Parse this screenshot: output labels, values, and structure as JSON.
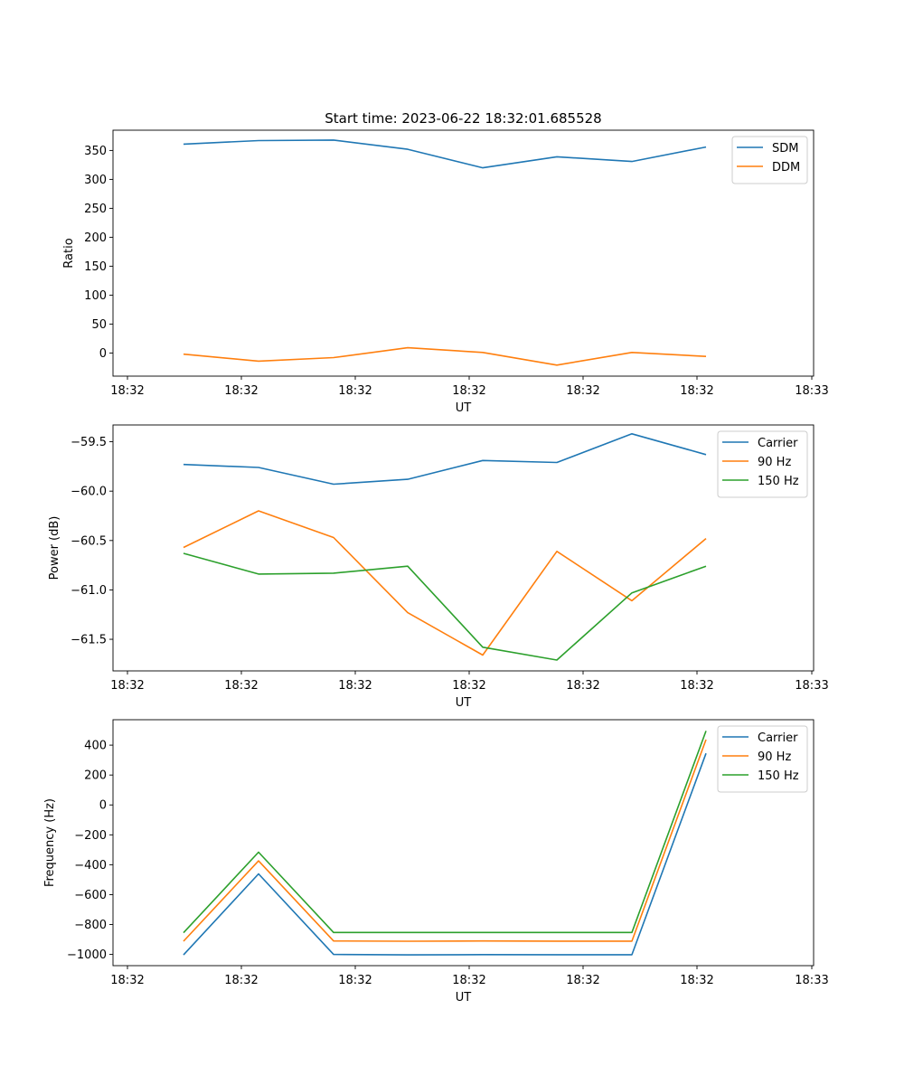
{
  "title": "Start time: 2023-06-22 18:32:01.685528",
  "colors": {
    "blue": "#1f77b4",
    "orange": "#ff7f0e",
    "green": "#2ca02c"
  },
  "chart_data": [
    {
      "type": "line",
      "xlabel": "UT",
      "ylabel": "Ratio",
      "x_tick_labels": [
        "18:32",
        "18:32",
        "18:32",
        "18:32",
        "18:32",
        "18:32",
        "18:33"
      ],
      "y_ticks": [
        0,
        50,
        100,
        150,
        200,
        250,
        300,
        350
      ],
      "ylim": [
        -40,
        385
      ],
      "legend": "top-right",
      "series": [
        {
          "name": "SDM",
          "color": "#1f77b4",
          "values": [
            361,
            367,
            368,
            352,
            320,
            339,
            331,
            356
          ]
        },
        {
          "name": "DDM",
          "color": "#ff7f0e",
          "values": [
            -2,
            -14,
            -8,
            9,
            1,
            -21,
            1,
            -6
          ]
        }
      ]
    },
    {
      "type": "line",
      "xlabel": "UT",
      "ylabel": "Power (dB)",
      "x_tick_labels": [
        "18:32",
        "18:32",
        "18:32",
        "18:32",
        "18:32",
        "18:32",
        "18:33"
      ],
      "y_ticks": [
        -61.5,
        -61.0,
        -60.5,
        -60.0,
        -59.5
      ],
      "y_tick_labels": [
        "−61.5",
        "−61.0",
        "−60.5",
        "−60.0",
        "−59.5"
      ],
      "ylim": [
        -61.82,
        -59.33
      ],
      "legend": "top-right",
      "series": [
        {
          "name": "Carrier",
          "color": "#1f77b4",
          "values": [
            -59.73,
            -59.76,
            -59.93,
            -59.88,
            -59.69,
            -59.71,
            -59.42,
            -59.63
          ]
        },
        {
          "name": "90 Hz",
          "color": "#ff7f0e",
          "values": [
            -60.57,
            -60.2,
            -60.47,
            -61.23,
            -61.66,
            -60.61,
            -61.11,
            -60.48
          ]
        },
        {
          "name": "150 Hz",
          "color": "#2ca02c",
          "values": [
            -60.63,
            -60.84,
            -60.83,
            -60.76,
            -61.58,
            -61.71,
            -61.03,
            -60.76
          ]
        }
      ]
    },
    {
      "type": "line",
      "xlabel": "UT",
      "ylabel": "Frequency (Hz)",
      "x_tick_labels": [
        "18:32",
        "18:32",
        "18:32",
        "18:32",
        "18:32",
        "18:32",
        "18:33"
      ],
      "y_ticks": [
        -1000,
        -800,
        -600,
        -400,
        -200,
        0,
        200,
        400
      ],
      "y_tick_labels": [
        "−1000",
        "−800",
        "−600",
        "−400",
        "−200",
        "0",
        "200",
        "400"
      ],
      "ylim": [
        -1075,
        570
      ],
      "legend": "top-right",
      "series": [
        {
          "name": "Carrier",
          "color": "#1f77b4",
          "values": [
            -1003,
            -461,
            -1000,
            -1003,
            -1001,
            -1002,
            -1002,
            345
          ]
        },
        {
          "name": "90 Hz",
          "color": "#ff7f0e",
          "values": [
            -912,
            -374,
            -910,
            -912,
            -910,
            -911,
            -911,
            437
          ]
        },
        {
          "name": "150 Hz",
          "color": "#2ca02c",
          "values": [
            -855,
            -316,
            -853,
            -853,
            -853,
            -853,
            -853,
            495
          ]
        }
      ]
    }
  ]
}
